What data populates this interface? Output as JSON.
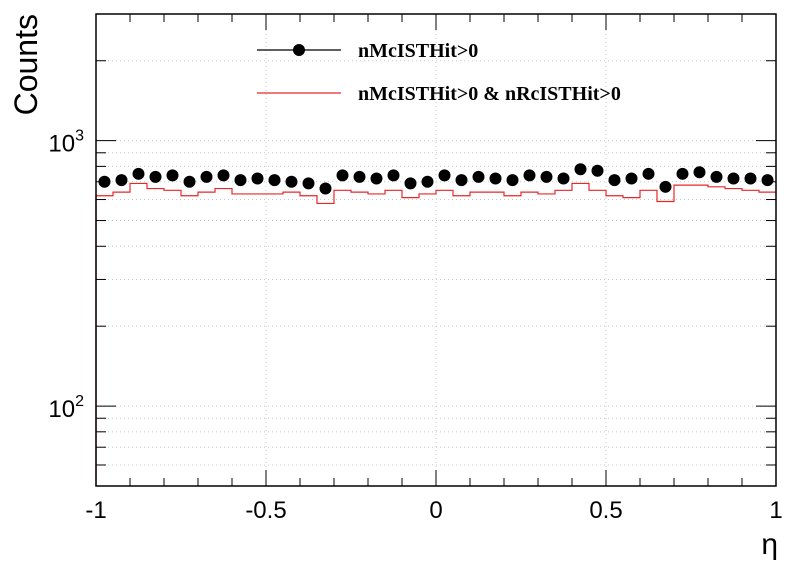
{
  "chart_data": {
    "type": "line",
    "xlabel": "η",
    "ylabel": "Counts",
    "xlim": [
      -1,
      1
    ],
    "ylim": [
      50,
      3000
    ],
    "y_scale": "log",
    "grid": true,
    "x_tick_labels": [
      "-1",
      "-0.5",
      "0",
      "0.5",
      "1"
    ],
    "y_tick_labels": [
      {
        "base": "10",
        "exp": "2"
      },
      {
        "base": "10",
        "exp": "3"
      }
    ],
    "legend": {
      "position": "top-center",
      "entries": [
        "nMcISTHit>0",
        "nMcISTHit>0 & nRcISTHit>0"
      ]
    },
    "x": [
      -0.975,
      -0.925,
      -0.875,
      -0.825,
      -0.775,
      -0.725,
      -0.675,
      -0.625,
      -0.575,
      -0.525,
      -0.475,
      -0.425,
      -0.375,
      -0.325,
      -0.275,
      -0.225,
      -0.175,
      -0.125,
      -0.075,
      -0.025,
      0.025,
      0.075,
      0.125,
      0.175,
      0.225,
      0.275,
      0.325,
      0.375,
      0.425,
      0.475,
      0.525,
      0.575,
      0.625,
      0.675,
      0.725,
      0.775,
      0.825,
      0.875,
      0.925,
      0.975
    ],
    "series": [
      {
        "name": "nMcISTHit>0",
        "style": "markers",
        "color": "#000000",
        "values": [
          700,
          710,
          750,
          730,
          740,
          700,
          730,
          740,
          710,
          720,
          710,
          700,
          690,
          660,
          740,
          730,
          720,
          740,
          690,
          700,
          740,
          710,
          730,
          720,
          710,
          740,
          730,
          720,
          780,
          770,
          710,
          720,
          750,
          670,
          750,
          760,
          730,
          720,
          720,
          710
        ]
      },
      {
        "name": "nMcISTHit>0 & nRcISTHit>0",
        "style": "step",
        "color": "#e8262a",
        "values": [
          620,
          640,
          690,
          660,
          650,
          620,
          640,
          660,
          630,
          630,
          630,
          640,
          620,
          580,
          650,
          640,
          630,
          650,
          610,
          630,
          650,
          620,
          640,
          640,
          620,
          640,
          630,
          650,
          690,
          650,
          620,
          610,
          650,
          590,
          680,
          680,
          670,
          660,
          650,
          640
        ]
      }
    ]
  }
}
